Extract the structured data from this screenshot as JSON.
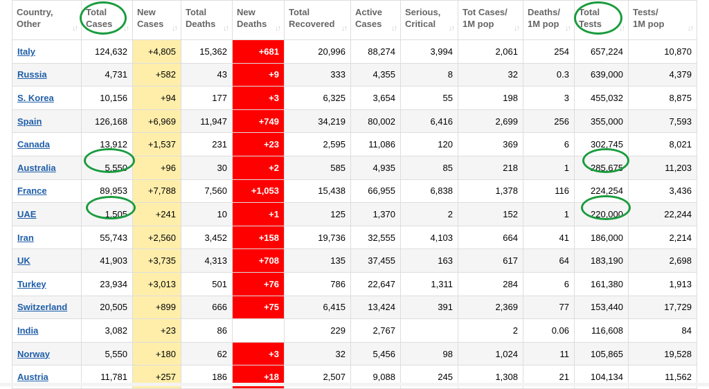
{
  "columns": [
    {
      "key": "country",
      "line1": "Country,",
      "line2": "Other"
    },
    {
      "key": "total_cases",
      "line1": "Total",
      "line2": "Cases"
    },
    {
      "key": "new_cases",
      "line1": "New",
      "line2": "Cases"
    },
    {
      "key": "total_deaths",
      "line1": "Total",
      "line2": "Deaths"
    },
    {
      "key": "new_deaths",
      "line1": "New",
      "line2": "Deaths"
    },
    {
      "key": "total_recovered",
      "line1": "Total",
      "line2": "Recovered"
    },
    {
      "key": "active_cases",
      "line1": "Active",
      "line2": "Cases"
    },
    {
      "key": "serious_critical",
      "line1": "Serious,",
      "line2": "Critical"
    },
    {
      "key": "tot_cases_1m",
      "line1": "Tot Cases/",
      "line2": "1M pop"
    },
    {
      "key": "deaths_1m",
      "line1": "Deaths/",
      "line2": "1M pop"
    },
    {
      "key": "total_tests",
      "line1": "Total",
      "line2": "Tests"
    },
    {
      "key": "tests_1m",
      "line1": "Tests/",
      "line2": "1M pop"
    }
  ],
  "sort_icon": "↓↑",
  "rows": [
    {
      "country": "Italy",
      "total_cases": "124,632",
      "new_cases": "+4,805",
      "total_deaths": "15,362",
      "new_deaths": "+681",
      "total_recovered": "20,996",
      "active_cases": "88,274",
      "serious_critical": "3,994",
      "tot_cases_1m": "2,061",
      "deaths_1m": "254",
      "total_tests": "657,224",
      "tests_1m": "10,870"
    },
    {
      "country": "Russia",
      "total_cases": "4,731",
      "new_cases": "+582",
      "total_deaths": "43",
      "new_deaths": "+9",
      "total_recovered": "333",
      "active_cases": "4,355",
      "serious_critical": "8",
      "tot_cases_1m": "32",
      "deaths_1m": "0.3",
      "total_tests": "639,000",
      "tests_1m": "4,379"
    },
    {
      "country": "S. Korea",
      "total_cases": "10,156",
      "new_cases": "+94",
      "total_deaths": "177",
      "new_deaths": "+3",
      "total_recovered": "6,325",
      "active_cases": "3,654",
      "serious_critical": "55",
      "tot_cases_1m": "198",
      "deaths_1m": "3",
      "total_tests": "455,032",
      "tests_1m": "8,875"
    },
    {
      "country": "Spain",
      "total_cases": "126,168",
      "new_cases": "+6,969",
      "total_deaths": "11,947",
      "new_deaths": "+749",
      "total_recovered": "34,219",
      "active_cases": "80,002",
      "serious_critical": "6,416",
      "tot_cases_1m": "2,699",
      "deaths_1m": "256",
      "total_tests": "355,000",
      "tests_1m": "7,593"
    },
    {
      "country": "Canada",
      "total_cases": "13,912",
      "new_cases": "+1,537",
      "total_deaths": "231",
      "new_deaths": "+23",
      "total_recovered": "2,595",
      "active_cases": "11,086",
      "serious_critical": "120",
      "tot_cases_1m": "369",
      "deaths_1m": "6",
      "total_tests": "302,745",
      "tests_1m": "8,021"
    },
    {
      "country": "Australia",
      "total_cases": "5,550",
      "new_cases": "+96",
      "total_deaths": "30",
      "new_deaths": "+2",
      "total_recovered": "585",
      "active_cases": "4,935",
      "serious_critical": "85",
      "tot_cases_1m": "218",
      "deaths_1m": "1",
      "total_tests": "285,675",
      "tests_1m": "11,203"
    },
    {
      "country": "France",
      "total_cases": "89,953",
      "new_cases": "+7,788",
      "total_deaths": "7,560",
      "new_deaths": "+1,053",
      "total_recovered": "15,438",
      "active_cases": "66,955",
      "serious_critical": "6,838",
      "tot_cases_1m": "1,378",
      "deaths_1m": "116",
      "total_tests": "224,254",
      "tests_1m": "3,436"
    },
    {
      "country": "UAE",
      "total_cases": "1,505",
      "new_cases": "+241",
      "total_deaths": "10",
      "new_deaths": "+1",
      "total_recovered": "125",
      "active_cases": "1,370",
      "serious_critical": "2",
      "tot_cases_1m": "152",
      "deaths_1m": "1",
      "total_tests": "220,000",
      "tests_1m": "22,244"
    },
    {
      "country": "Iran",
      "total_cases": "55,743",
      "new_cases": "+2,560",
      "total_deaths": "3,452",
      "new_deaths": "+158",
      "total_recovered": "19,736",
      "active_cases": "32,555",
      "serious_critical": "4,103",
      "tot_cases_1m": "664",
      "deaths_1m": "41",
      "total_tests": "186,000",
      "tests_1m": "2,214"
    },
    {
      "country": "UK",
      "total_cases": "41,903",
      "new_cases": "+3,735",
      "total_deaths": "4,313",
      "new_deaths": "+708",
      "total_recovered": "135",
      "active_cases": "37,455",
      "serious_critical": "163",
      "tot_cases_1m": "617",
      "deaths_1m": "64",
      "total_tests": "183,190",
      "tests_1m": "2,698"
    },
    {
      "country": "Turkey",
      "total_cases": "23,934",
      "new_cases": "+3,013",
      "total_deaths": "501",
      "new_deaths": "+76",
      "total_recovered": "786",
      "active_cases": "22,647",
      "serious_critical": "1,311",
      "tot_cases_1m": "284",
      "deaths_1m": "6",
      "total_tests": "161,380",
      "tests_1m": "1,913"
    },
    {
      "country": "Switzerland",
      "total_cases": "20,505",
      "new_cases": "+899",
      "total_deaths": "666",
      "new_deaths": "+75",
      "total_recovered": "6,415",
      "active_cases": "13,424",
      "serious_critical": "391",
      "tot_cases_1m": "2,369",
      "deaths_1m": "77",
      "total_tests": "153,440",
      "tests_1m": "17,729"
    },
    {
      "country": "India",
      "total_cases": "3,082",
      "new_cases": "+23",
      "total_deaths": "86",
      "new_deaths": "",
      "total_recovered": "229",
      "active_cases": "2,767",
      "serious_critical": "",
      "tot_cases_1m": "2",
      "deaths_1m": "0.06",
      "total_tests": "116,608",
      "tests_1m": "84"
    },
    {
      "country": "Norway",
      "total_cases": "5,550",
      "new_cases": "+180",
      "total_deaths": "62",
      "new_deaths": "+3",
      "total_recovered": "32",
      "active_cases": "5,456",
      "serious_critical": "98",
      "tot_cases_1m": "1,024",
      "deaths_1m": "11",
      "total_tests": "105,865",
      "tests_1m": "19,528"
    },
    {
      "country": "Austria",
      "total_cases": "11,781",
      "new_cases": "+257",
      "total_deaths": "186",
      "new_deaths": "+18",
      "total_recovered": "2,507",
      "active_cases": "9,088",
      "serious_critical": "245",
      "tot_cases_1m": "1,308",
      "deaths_1m": "21",
      "total_tests": "104,134",
      "tests_1m": "11,562"
    }
  ],
  "colors": {
    "new_cases_bg": "#ffeeaa",
    "new_deaths_bg": "#ff0000",
    "link": "#1f5ea8",
    "highlight_circle": "#1a9c3e"
  }
}
